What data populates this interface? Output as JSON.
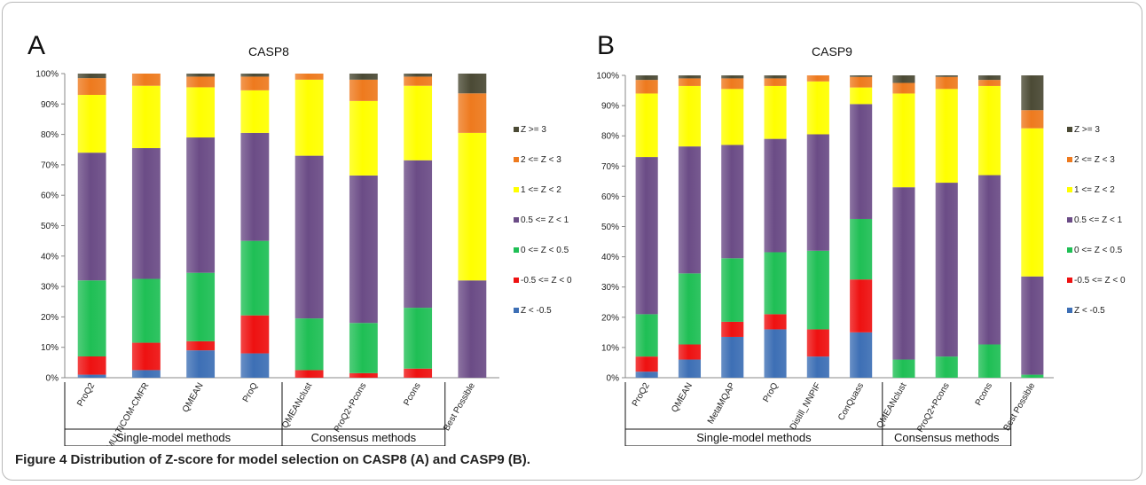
{
  "figure": {
    "caption_label": "Figure 4",
    "caption_text": "Distribution of Z-score for model selection on CASP8 (A) and CASP9 (B)."
  },
  "legend": {
    "entries": [
      "Z >= 3",
      "2 <= Z < 3",
      "1 <= Z < 2",
      "0.5 <= Z < 1",
      "0 <= Z < 0.5",
      "-0.5 <= Z < 0",
      "Z < -0.5"
    ],
    "colors": [
      "#4b4a35",
      "#ee7a1e",
      "#ffff00",
      "#6b4c86",
      "#1fbf55",
      "#ee1111",
      "#3d6fb5"
    ]
  },
  "chart_data": [
    {
      "type": "bar",
      "stacked": "percent",
      "panel_letter": "A",
      "title": "CASP8",
      "ylim": [
        0,
        100
      ],
      "yticks": [
        "0%",
        "10%",
        "20%",
        "30%",
        "40%",
        "50%",
        "60%",
        "70%",
        "80%",
        "90%",
        "100%"
      ],
      "categories": [
        "ProQ2",
        "MULTICOM-CMFR",
        "QMEAN",
        "ProQ",
        "QMEANclust",
        "ProQ2+Pcons",
        "Pcons",
        "Best Possible"
      ],
      "groups": [
        {
          "label": "Single-model methods",
          "start": 0,
          "end": 3
        },
        {
          "label": "Consensus methods",
          "start": 4,
          "end": 6
        }
      ],
      "series": [
        {
          "name": "Z < -0.5",
          "values": [
            1,
            2.5,
            9,
            8,
            0,
            0,
            0,
            0
          ]
        },
        {
          "name": "-0.5 <= Z < 0",
          "values": [
            6,
            9,
            3,
            12.5,
            2.5,
            1.5,
            3,
            0
          ]
        },
        {
          "name": "0 <= Z < 0.5",
          "values": [
            25,
            21,
            22.5,
            24.5,
            17,
            16.5,
            20,
            0
          ]
        },
        {
          "name": "0.5 <= Z < 1",
          "values": [
            42,
            43,
            44.5,
            35.5,
            53.5,
            48.5,
            48.5,
            32
          ]
        },
        {
          "name": "1 <= Z < 2",
          "values": [
            19,
            20.5,
            16.5,
            14,
            25,
            24.5,
            24.5,
            48.5
          ]
        },
        {
          "name": "2 <= Z < 3",
          "values": [
            5.5,
            4,
            3.5,
            4.5,
            2,
            7,
            3,
            13
          ]
        },
        {
          "name": "Z >= 3",
          "values": [
            1.5,
            0,
            1,
            1,
            0,
            2,
            1,
            6.5
          ]
        }
      ]
    },
    {
      "type": "bar",
      "stacked": "percent",
      "panel_letter": "B",
      "title": "CASP9",
      "ylim": [
        0,
        100
      ],
      "yticks": [
        "0%",
        "10%",
        "20%",
        "30%",
        "40%",
        "50%",
        "60%",
        "70%",
        "80%",
        "90%",
        "100%"
      ],
      "categories": [
        "ProQ2",
        "QMEAN",
        "MetaMQAP",
        "ProQ",
        "Distill_NNPIF",
        "ConQuass",
        "QMEANclust",
        "ProQ2+Pcons",
        "Pcons",
        "Best Possible"
      ],
      "groups": [
        {
          "label": "Single-model methods",
          "start": 0,
          "end": 5
        },
        {
          "label": "Consensus methods",
          "start": 6,
          "end": 8
        }
      ],
      "series": [
        {
          "name": "Z < -0.5",
          "values": [
            2,
            6,
            13.5,
            16,
            7,
            15,
            0,
            0,
            0,
            0
          ]
        },
        {
          "name": "-0.5 <= Z < 0",
          "values": [
            5,
            5,
            5,
            5,
            9,
            17.5,
            0,
            0,
            0,
            0
          ]
        },
        {
          "name": "0 <= Z < 0.5",
          "values": [
            14,
            23.5,
            21,
            20.5,
            26,
            20,
            6,
            7,
            11,
            1
          ]
        },
        {
          "name": "0.5 <= Z < 1",
          "values": [
            52,
            42,
            37.5,
            37.5,
            38.5,
            38,
            57,
            57.5,
            56,
            32.5
          ]
        },
        {
          "name": "1 <= Z < 2",
          "values": [
            21,
            20,
            18.5,
            17.5,
            17.5,
            5.5,
            31,
            31,
            29.5,
            49
          ]
        },
        {
          "name": "2 <= Z < 3",
          "values": [
            4.5,
            2.5,
            3.5,
            2.5,
            2,
            3.5,
            3.5,
            4,
            2,
            6
          ]
        },
        {
          "name": "Z >= 3",
          "values": [
            1.5,
            1,
            1,
            1,
            0,
            0.5,
            2.5,
            0.5,
            1.5,
            11.5
          ]
        }
      ]
    }
  ]
}
